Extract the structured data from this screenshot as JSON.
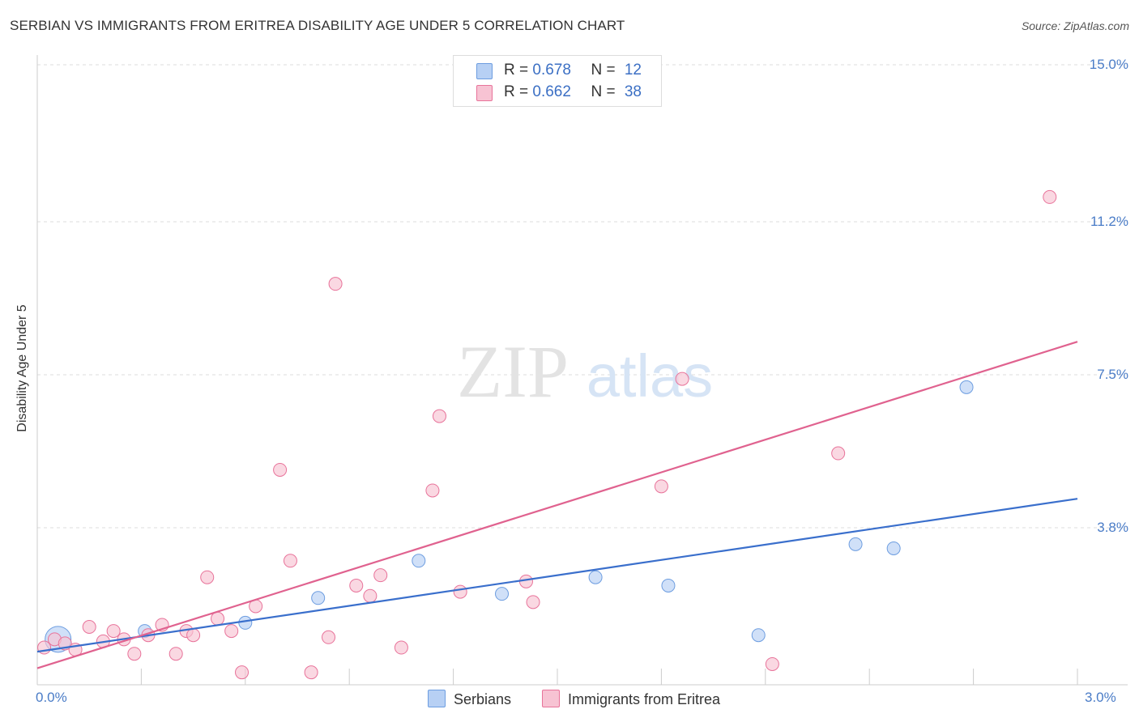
{
  "header": {
    "title": "SERBIAN VS IMMIGRANTS FROM ERITREA DISABILITY AGE UNDER 5 CORRELATION CHART",
    "source": "Source: ZipAtlas.com"
  },
  "watermark": {
    "zip": "ZIP",
    "atlas": "atlas"
  },
  "legend": {
    "rows": [
      {
        "r_label": "R = ",
        "r_value": "0.678",
        "n_label": "N = ",
        "n_value": "12"
      },
      {
        "r_label": "R = ",
        "r_value": "0.662",
        "n_label": "N = ",
        "n_value": "38"
      }
    ],
    "bottom": [
      "Serbians",
      "Immigrants from Eritrea"
    ]
  },
  "chart_data": {
    "type": "scatter",
    "title": "SERBIAN VS IMMIGRANTS FROM ERITREA DISABILITY AGE UNDER 5 CORRELATION CHART",
    "xlabel": "",
    "ylabel": "Disability Age Under 5",
    "xlim": [
      0,
      3.0
    ],
    "ylim": [
      0,
      15.0
    ],
    "y_ticks": [
      3.8,
      7.5,
      11.2,
      15.0
    ],
    "y_tick_labels": [
      "3.8%",
      "7.5%",
      "11.2%",
      "15.0%"
    ],
    "x_tick_labels": [
      "0.0%",
      "3.0%"
    ],
    "grid": true,
    "legend_placement": "top-center",
    "series": [
      {
        "name": "Serbians",
        "color": "#6d9de0",
        "fill": "#b7d0f4",
        "r": 0.678,
        "n": 12,
        "trend": {
          "x": [
            0,
            3.0
          ],
          "y": [
            0.8,
            4.5
          ]
        },
        "points": [
          {
            "x": 0.06,
            "y": 1.1,
            "big": true
          },
          {
            "x": 0.31,
            "y": 1.3
          },
          {
            "x": 0.6,
            "y": 1.5
          },
          {
            "x": 0.81,
            "y": 2.1
          },
          {
            "x": 1.1,
            "y": 3.0
          },
          {
            "x": 1.34,
            "y": 2.2
          },
          {
            "x": 1.61,
            "y": 2.6
          },
          {
            "x": 1.82,
            "y": 2.4
          },
          {
            "x": 2.08,
            "y": 1.2
          },
          {
            "x": 2.36,
            "y": 3.4
          },
          {
            "x": 2.47,
            "y": 3.3
          },
          {
            "x": 2.68,
            "y": 7.2
          }
        ]
      },
      {
        "name": "Immigrants from Eritrea",
        "color": "#e8739a",
        "fill": "#f7c3d3",
        "r": 0.662,
        "n": 38,
        "trend": {
          "x": [
            0,
            3.0
          ],
          "y": [
            0.4,
            8.3
          ]
        },
        "points": [
          {
            "x": 0.02,
            "y": 0.9
          },
          {
            "x": 0.05,
            "y": 1.1
          },
          {
            "x": 0.08,
            "y": 1.0
          },
          {
            "x": 0.11,
            "y": 0.85
          },
          {
            "x": 0.15,
            "y": 1.4
          },
          {
            "x": 0.19,
            "y": 1.05
          },
          {
            "x": 0.22,
            "y": 1.3
          },
          {
            "x": 0.25,
            "y": 1.1
          },
          {
            "x": 0.28,
            "y": 0.75
          },
          {
            "x": 0.32,
            "y": 1.2
          },
          {
            "x": 0.36,
            "y": 1.45
          },
          {
            "x": 0.4,
            "y": 0.75
          },
          {
            "x": 0.43,
            "y": 1.3
          },
          {
            "x": 0.45,
            "y": 1.2
          },
          {
            "x": 0.49,
            "y": 2.6
          },
          {
            "x": 0.52,
            "y": 1.6
          },
          {
            "x": 0.56,
            "y": 1.3
          },
          {
            "x": 0.59,
            "y": 0.3
          },
          {
            "x": 0.63,
            "y": 1.9
          },
          {
            "x": 0.7,
            "y": 5.2
          },
          {
            "x": 0.73,
            "y": 3.0
          },
          {
            "x": 0.79,
            "y": 0.3
          },
          {
            "x": 0.84,
            "y": 1.15
          },
          {
            "x": 0.86,
            "y": 9.7
          },
          {
            "x": 0.92,
            "y": 2.4
          },
          {
            "x": 0.96,
            "y": 2.15
          },
          {
            "x": 0.99,
            "y": 2.65
          },
          {
            "x": 1.05,
            "y": 0.9
          },
          {
            "x": 1.14,
            "y": 4.7
          },
          {
            "x": 1.16,
            "y": 6.5
          },
          {
            "x": 1.22,
            "y": 2.25
          },
          {
            "x": 1.41,
            "y": 2.5
          },
          {
            "x": 1.43,
            "y": 2.0
          },
          {
            "x": 1.8,
            "y": 4.8
          },
          {
            "x": 1.86,
            "y": 7.4
          },
          {
            "x": 2.12,
            "y": 0.5
          },
          {
            "x": 2.31,
            "y": 5.6
          },
          {
            "x": 2.92,
            "y": 11.8
          }
        ]
      }
    ]
  }
}
